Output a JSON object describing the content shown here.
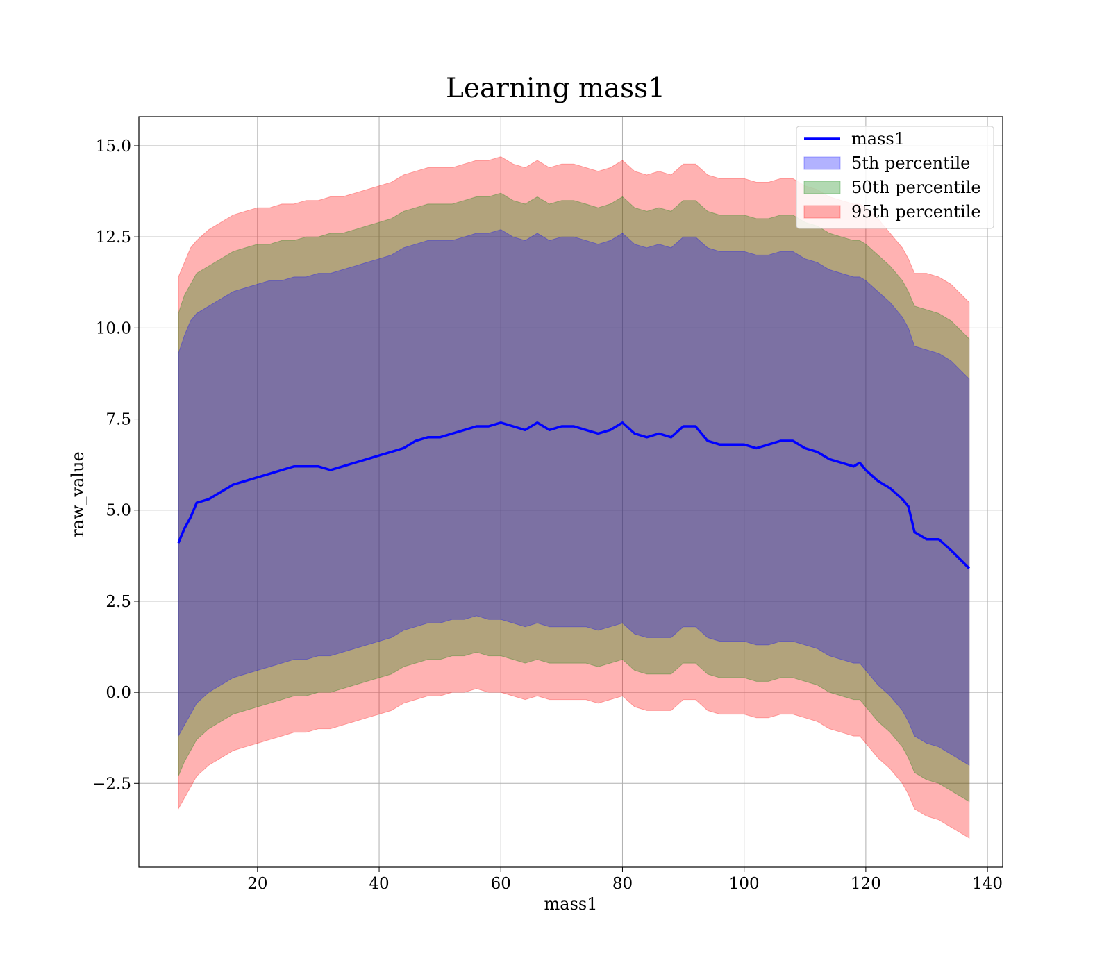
{
  "chart_data": {
    "type": "area",
    "title": "Learning mass1",
    "xlabel": "mass1",
    "ylabel": "raw_value",
    "xlim": [
      0.5,
      142.5
    ],
    "ylim": [
      -4.8,
      15.8
    ],
    "x_ticks": [
      20,
      40,
      60,
      80,
      100,
      120,
      140
    ],
    "x_tick_labels": [
      "20",
      "40",
      "60",
      "80",
      "100",
      "120",
      "140"
    ],
    "y_ticks": [
      -2.5,
      0.0,
      2.5,
      5.0,
      7.5,
      10.0,
      12.5,
      15.0
    ],
    "y_tick_labels": [
      "−2.5",
      "0.0",
      "2.5",
      "5.0",
      "7.5",
      "10.0",
      "12.5",
      "15.0"
    ],
    "grid": true,
    "legend_position": "top-right",
    "legend": [
      "mass1",
      "5th percentile",
      "50th percentile",
      "95th percentile"
    ],
    "colors": {
      "line": "#0000ff",
      "band_5th": "#0000ff",
      "band_50th": "#008000",
      "band_95th": "#ff0000"
    },
    "x": [
      7,
      8,
      9,
      10,
      12,
      14,
      16,
      18,
      20,
      22,
      24,
      26,
      28,
      30,
      32,
      34,
      36,
      38,
      40,
      42,
      44,
      46,
      48,
      50,
      52,
      54,
      56,
      58,
      60,
      62,
      64,
      66,
      68,
      70,
      72,
      74,
      76,
      78,
      80,
      82,
      84,
      86,
      88,
      90,
      92,
      94,
      96,
      98,
      100,
      102,
      104,
      106,
      108,
      110,
      112,
      114,
      116,
      118,
      119,
      120,
      122,
      124,
      126,
      127,
      128,
      130,
      132,
      134,
      137
    ],
    "series": [
      {
        "name": "mass1",
        "values": [
          4.1,
          4.5,
          4.8,
          5.2,
          5.3,
          5.5,
          5.7,
          5.8,
          5.9,
          6.0,
          6.1,
          6.2,
          6.2,
          6.2,
          6.1,
          6.2,
          6.3,
          6.4,
          6.5,
          6.6,
          6.7,
          6.9,
          7.0,
          7.0,
          7.1,
          7.2,
          7.3,
          7.3,
          7.4,
          7.3,
          7.2,
          7.4,
          7.2,
          7.3,
          7.3,
          7.2,
          7.1,
          7.2,
          7.4,
          7.1,
          7.0,
          7.1,
          7.0,
          7.3,
          7.3,
          6.9,
          6.8,
          6.8,
          6.8,
          6.7,
          6.8,
          6.9,
          6.9,
          6.7,
          6.6,
          6.4,
          6.3,
          6.2,
          6.3,
          6.1,
          5.8,
          5.6,
          5.3,
          5.1,
          4.4,
          4.2,
          4.2,
          3.9,
          3.4
        ]
      },
      {
        "name": "5th percentile",
        "low": [
          -1.2,
          -0.9,
          -0.6,
          -0.3,
          0.0,
          0.2,
          0.4,
          0.5,
          0.6,
          0.7,
          0.8,
          0.9,
          0.9,
          1.0,
          1.0,
          1.1,
          1.2,
          1.3,
          1.4,
          1.5,
          1.7,
          1.8,
          1.9,
          1.9,
          2.0,
          2.0,
          2.1,
          2.0,
          2.0,
          1.9,
          1.8,
          1.9,
          1.8,
          1.8,
          1.8,
          1.8,
          1.7,
          1.8,
          1.9,
          1.6,
          1.5,
          1.5,
          1.5,
          1.8,
          1.8,
          1.5,
          1.4,
          1.4,
          1.4,
          1.3,
          1.3,
          1.4,
          1.4,
          1.3,
          1.2,
          1.0,
          0.9,
          0.8,
          0.8,
          0.6,
          0.2,
          -0.1,
          -0.5,
          -0.8,
          -1.2,
          -1.4,
          -1.5,
          -1.7,
          -2.0
        ],
        "high": [
          9.3,
          9.8,
          10.2,
          10.4,
          10.6,
          10.8,
          11.0,
          11.1,
          11.2,
          11.3,
          11.3,
          11.4,
          11.4,
          11.5,
          11.5,
          11.6,
          11.7,
          11.8,
          11.9,
          12.0,
          12.2,
          12.3,
          12.4,
          12.4,
          12.4,
          12.5,
          12.6,
          12.6,
          12.7,
          12.5,
          12.4,
          12.6,
          12.4,
          12.5,
          12.5,
          12.4,
          12.3,
          12.4,
          12.6,
          12.3,
          12.2,
          12.3,
          12.2,
          12.5,
          12.5,
          12.2,
          12.1,
          12.1,
          12.1,
          12.0,
          12.0,
          12.1,
          12.1,
          11.9,
          11.8,
          11.6,
          11.5,
          11.4,
          11.4,
          11.3,
          11.0,
          10.7,
          10.3,
          10.0,
          9.5,
          9.4,
          9.3,
          9.1,
          8.6
        ]
      },
      {
        "name": "50th percentile",
        "low": [
          -2.3,
          -1.9,
          -1.6,
          -1.3,
          -1.0,
          -0.8,
          -0.6,
          -0.5,
          -0.4,
          -0.3,
          -0.2,
          -0.1,
          -0.1,
          0.0,
          0.0,
          0.1,
          0.2,
          0.3,
          0.4,
          0.5,
          0.7,
          0.8,
          0.9,
          0.9,
          1.0,
          1.0,
          1.1,
          1.0,
          1.0,
          0.9,
          0.8,
          0.9,
          0.8,
          0.8,
          0.8,
          0.8,
          0.7,
          0.8,
          0.9,
          0.6,
          0.5,
          0.5,
          0.5,
          0.8,
          0.8,
          0.5,
          0.4,
          0.4,
          0.4,
          0.3,
          0.3,
          0.4,
          0.4,
          0.3,
          0.2,
          0.0,
          -0.1,
          -0.2,
          -0.2,
          -0.4,
          -0.8,
          -1.1,
          -1.5,
          -1.8,
          -2.2,
          -2.4,
          -2.5,
          -2.7,
          -3.0
        ],
        "high": [
          10.4,
          10.9,
          11.2,
          11.5,
          11.7,
          11.9,
          12.1,
          12.2,
          12.3,
          12.3,
          12.4,
          12.4,
          12.5,
          12.5,
          12.6,
          12.6,
          12.7,
          12.8,
          12.9,
          13.0,
          13.2,
          13.3,
          13.4,
          13.4,
          13.4,
          13.5,
          13.6,
          13.6,
          13.7,
          13.5,
          13.4,
          13.6,
          13.4,
          13.5,
          13.5,
          13.4,
          13.3,
          13.4,
          13.6,
          13.3,
          13.2,
          13.3,
          13.2,
          13.5,
          13.5,
          13.2,
          13.1,
          13.1,
          13.1,
          13.0,
          13.0,
          13.1,
          13.1,
          12.9,
          12.8,
          12.6,
          12.5,
          12.4,
          12.4,
          12.3,
          12.0,
          11.7,
          11.3,
          11.0,
          10.6,
          10.5,
          10.4,
          10.2,
          9.7
        ]
      },
      {
        "name": "95th percentile",
        "low": [
          -3.2,
          -2.9,
          -2.6,
          -2.3,
          -2.0,
          -1.8,
          -1.6,
          -1.5,
          -1.4,
          -1.3,
          -1.2,
          -1.1,
          -1.1,
          -1.0,
          -1.0,
          -0.9,
          -0.8,
          -0.7,
          -0.6,
          -0.5,
          -0.3,
          -0.2,
          -0.1,
          -0.1,
          0.0,
          0.0,
          0.1,
          0.0,
          0.0,
          -0.1,
          -0.2,
          -0.1,
          -0.2,
          -0.2,
          -0.2,
          -0.2,
          -0.3,
          -0.2,
          -0.1,
          -0.4,
          -0.5,
          -0.5,
          -0.5,
          -0.2,
          -0.2,
          -0.5,
          -0.6,
          -0.6,
          -0.6,
          -0.7,
          -0.7,
          -0.6,
          -0.6,
          -0.7,
          -0.8,
          -1.0,
          -1.1,
          -1.2,
          -1.2,
          -1.4,
          -1.8,
          -2.1,
          -2.5,
          -2.8,
          -3.2,
          -3.4,
          -3.5,
          -3.7,
          -4.0
        ],
        "high": [
          11.4,
          11.8,
          12.2,
          12.4,
          12.7,
          12.9,
          13.1,
          13.2,
          13.3,
          13.3,
          13.4,
          13.4,
          13.5,
          13.5,
          13.6,
          13.6,
          13.7,
          13.8,
          13.9,
          14.0,
          14.2,
          14.3,
          14.4,
          14.4,
          14.4,
          14.5,
          14.6,
          14.6,
          14.7,
          14.5,
          14.4,
          14.6,
          14.4,
          14.5,
          14.5,
          14.4,
          14.3,
          14.4,
          14.6,
          14.3,
          14.2,
          14.3,
          14.2,
          14.5,
          14.5,
          14.2,
          14.1,
          14.1,
          14.1,
          14.0,
          14.0,
          14.1,
          14.1,
          13.9,
          13.8,
          13.6,
          13.5,
          13.4,
          13.4,
          13.3,
          13.0,
          12.6,
          12.2,
          11.9,
          11.5,
          11.5,
          11.4,
          11.2,
          10.7
        ]
      }
    ]
  }
}
